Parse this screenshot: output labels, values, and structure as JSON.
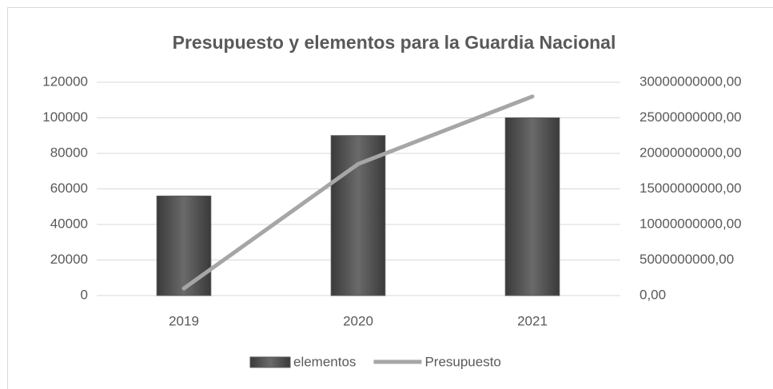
{
  "chart_data": {
    "type": "bar",
    "title": "Presupuesto y elementos para la Guardia Nacional",
    "categories": [
      "2019",
      "2020",
      "2021"
    ],
    "series": [
      {
        "name": "elementos",
        "type": "bar",
        "color": "#595959",
        "values": [
          56000,
          90000,
          100000
        ]
      },
      {
        "name": "Presupuesto",
        "type": "line",
        "axis": "y2",
        "color": "#a6a6a6",
        "values": [
          1000000000,
          18500000000,
          28000000000
        ]
      }
    ],
    "ylim": [
      0,
      120000
    ],
    "yticks": [
      0,
      20000,
      40000,
      60000,
      80000,
      100000,
      120000
    ],
    "y2lim": [
      0,
      30000000000
    ],
    "y2ticks": [
      {
        "value": 0,
        "label": "0,00"
      },
      {
        "value": 5000000000,
        "label": "5000000000,00"
      },
      {
        "value": 10000000000,
        "label": "10000000000,00"
      },
      {
        "value": 15000000000,
        "label": "15000000000,00"
      },
      {
        "value": 20000000000,
        "label": "20000000000,00"
      },
      {
        "value": 25000000000,
        "label": "25000000000,00"
      },
      {
        "value": 30000000000,
        "label": "30000000000,00"
      }
    ],
    "grid": true,
    "legend": "bottom"
  }
}
